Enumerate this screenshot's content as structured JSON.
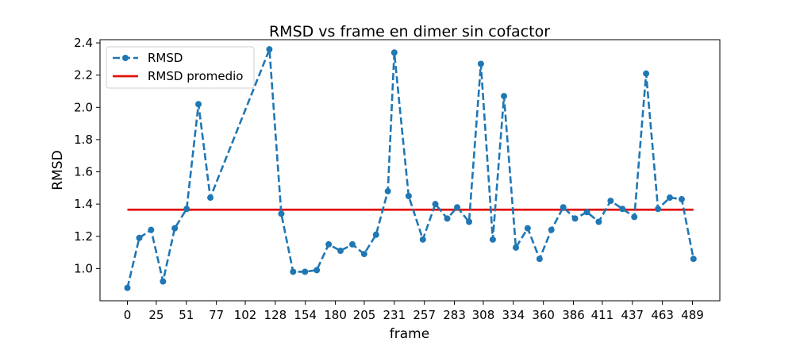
{
  "chart_data": {
    "type": "line",
    "title": "RMSD vs frame en dimer sin cofactor",
    "xlabel": "frame",
    "ylabel": "RMSD",
    "xlim": [
      -23.7,
      512.7
    ],
    "ylim": [
      0.8,
      2.42
    ],
    "x_ticks": [
      0,
      25,
      51,
      77,
      102,
      128,
      154,
      180,
      205,
      231,
      257,
      283,
      308,
      334,
      360,
      386,
      411,
      437,
      463,
      489
    ],
    "y_ticks": [
      1.0,
      1.2,
      1.4,
      1.6,
      1.8,
      2.0,
      2.2,
      2.4
    ],
    "y_tick_labels": [
      "1.0",
      "1.2",
      "1.4",
      "1.6",
      "1.8",
      "2.0",
      "2.2",
      "2.4"
    ],
    "grid": false,
    "legend_position": "upper left",
    "series": [
      {
        "name": "RMSD",
        "style": "dashed-with-markers",
        "color": "#1f77b4",
        "x": [
          0,
          10.3,
          20.5,
          30.8,
          41,
          51.3,
          61.5,
          71.8,
          122.9,
          133.2,
          143.4,
          153.7,
          163.9,
          174.2,
          184.4,
          194.7,
          204.9,
          215.2,
          225.4,
          231,
          243.4,
          255.7,
          266.5,
          276.8,
          285.4,
          295.7,
          305.9,
          316.2,
          325.9,
          336.2,
          346.4,
          356.7,
          366.9,
          377.2,
          387.4,
          397.7,
          407.9,
          418.2,
          428.4,
          438.7,
          448.9,
          459.2,
          469.4,
          479.7,
          489.9
        ],
        "y": [
          0.88,
          1.19,
          1.24,
          0.92,
          1.25,
          1.37,
          2.02,
          1.44,
          2.36,
          1.34,
          0.98,
          0.98,
          0.99,
          1.15,
          1.11,
          1.15,
          1.09,
          1.21,
          1.48,
          2.34,
          1.45,
          1.18,
          1.4,
          1.31,
          1.38,
          1.29,
          2.27,
          1.18,
          2.07,
          1.13,
          1.25,
          1.06,
          1.24,
          1.38,
          1.31,
          1.35,
          1.29,
          1.42,
          1.37,
          1.32,
          2.21,
          1.37,
          1.44,
          1.43,
          1.06
        ]
      },
      {
        "name": "RMSD promedio",
        "style": "solid",
        "color": "#e3120b",
        "x": [
          0,
          489.9
        ],
        "y": [
          1.365,
          1.365
        ]
      }
    ]
  }
}
